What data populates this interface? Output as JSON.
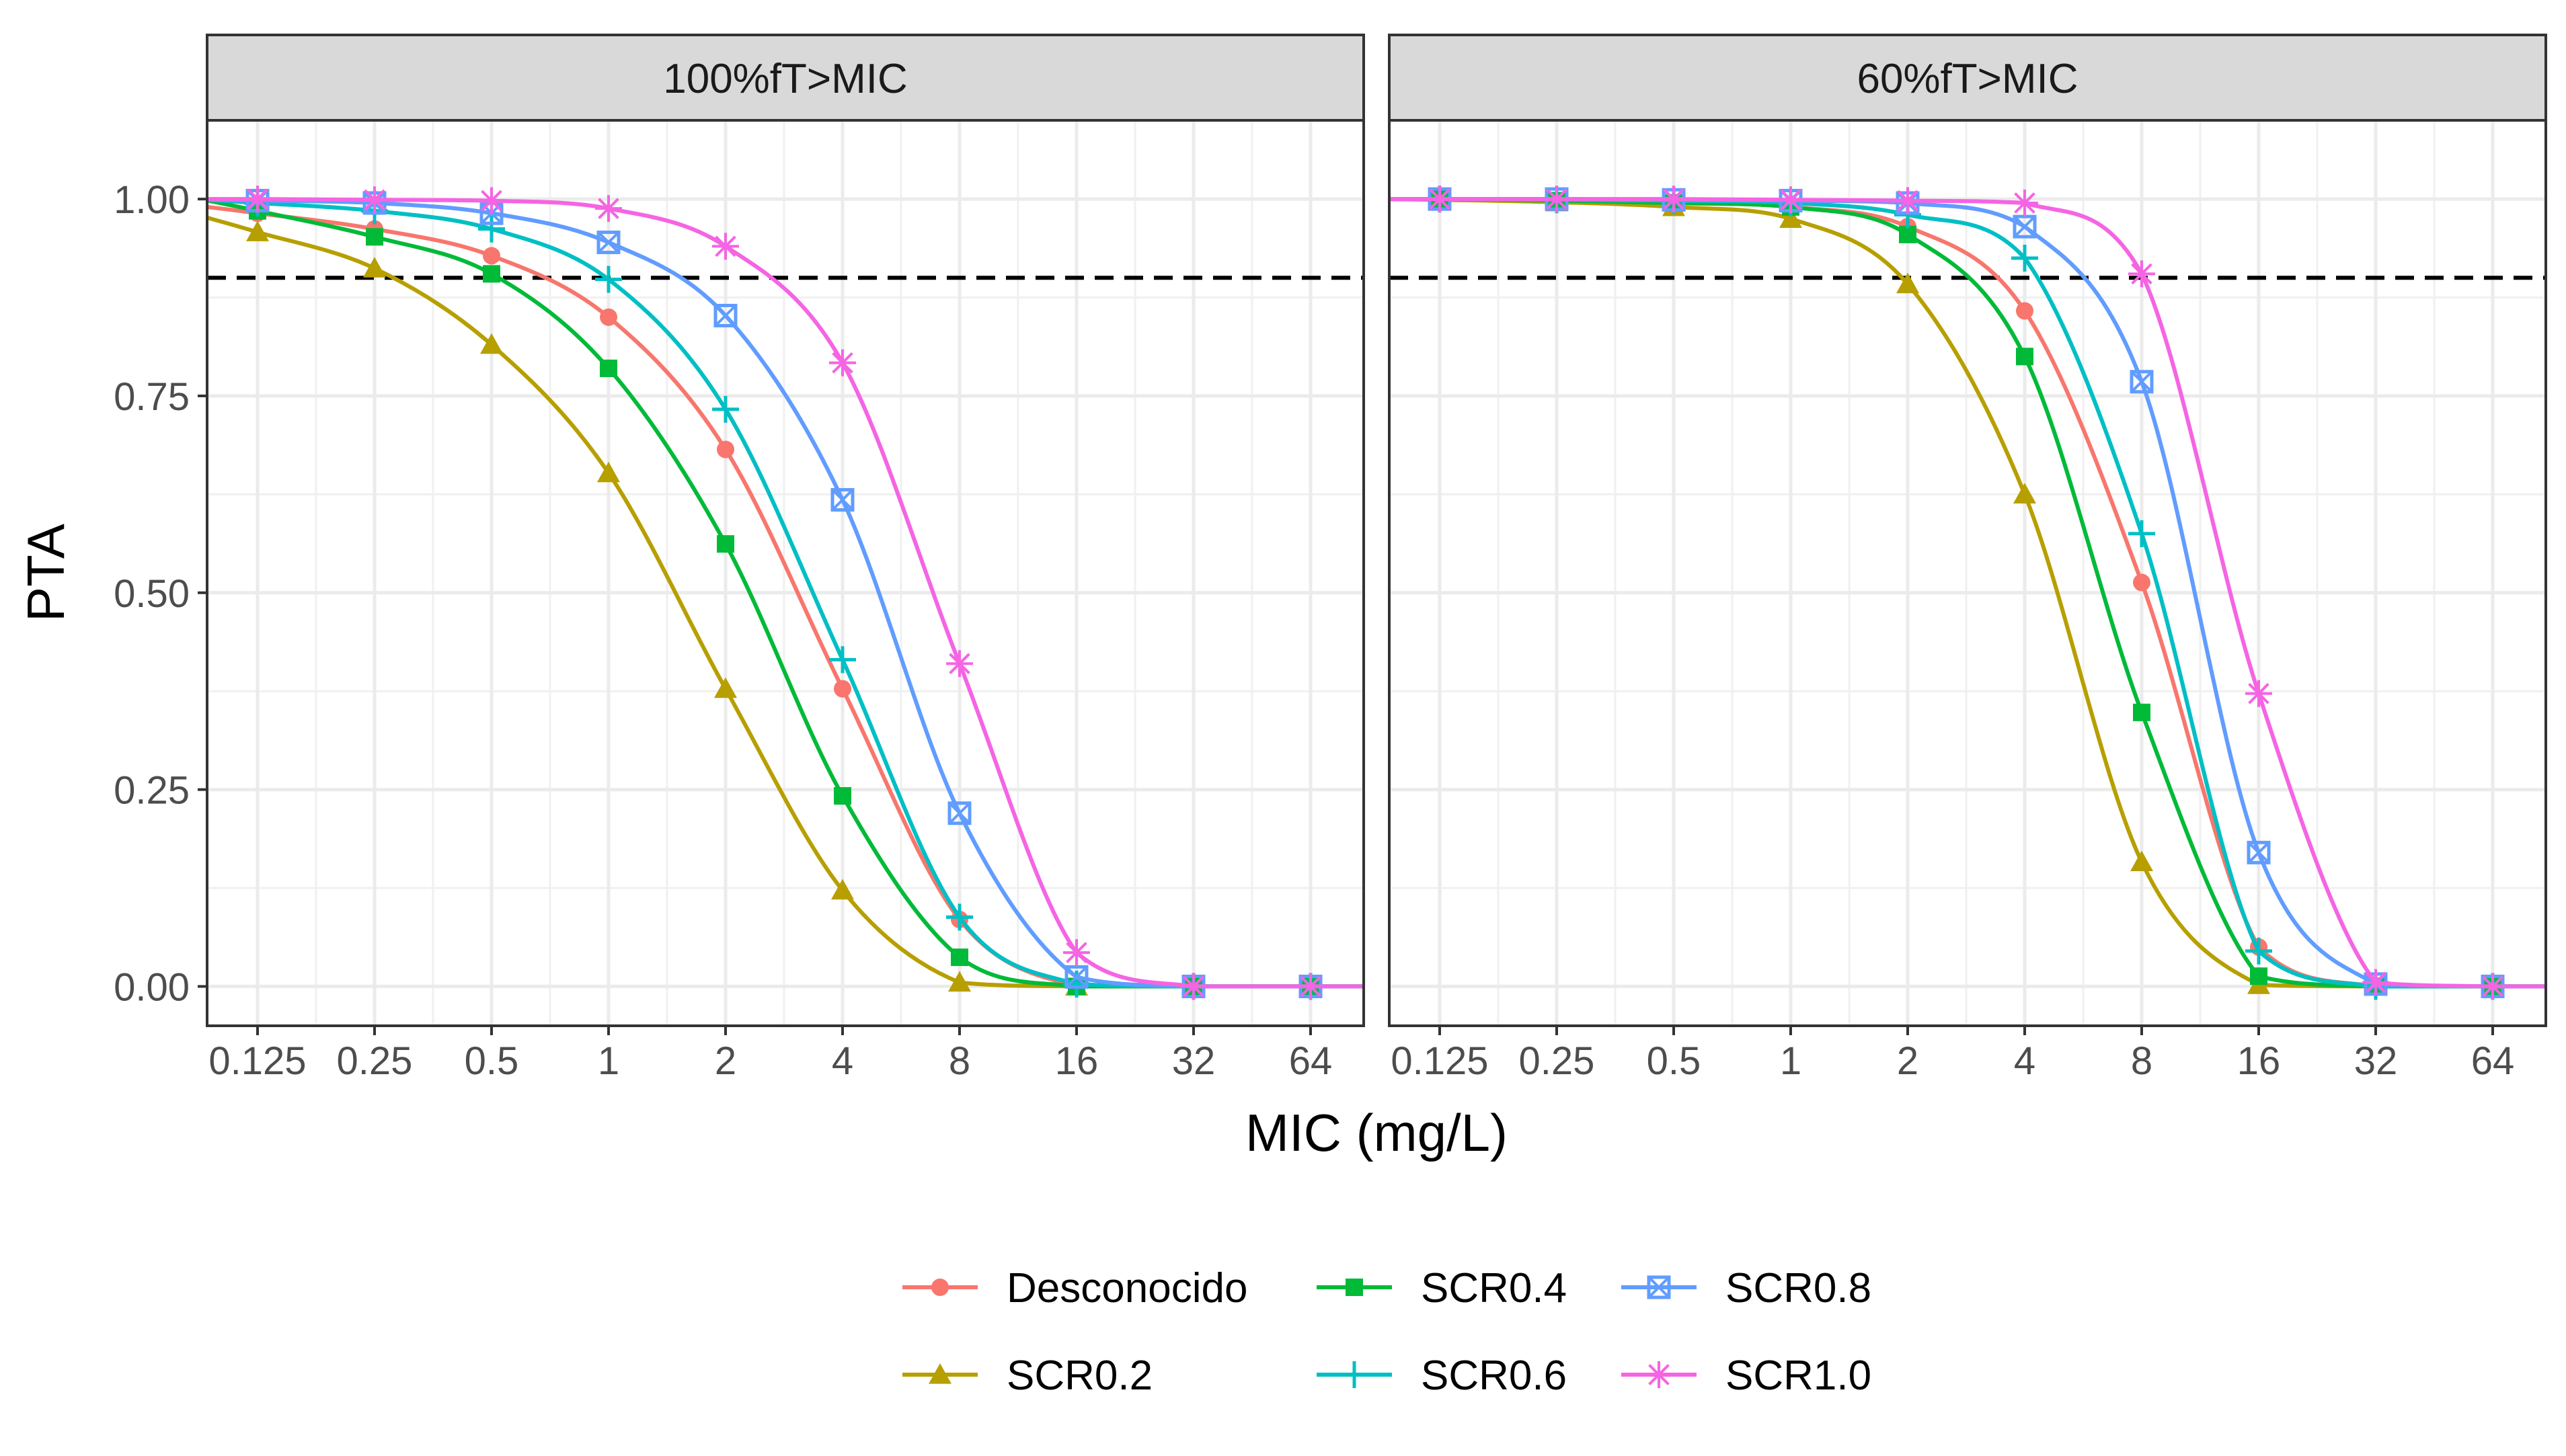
{
  "chart_data": {
    "type": "line",
    "xlabel": "MIC (mg/L)",
    "ylabel": "PTA",
    "x_scale": "log2",
    "x_ticks": [
      0.125,
      0.25,
      0.5,
      1,
      2,
      4,
      8,
      16,
      32,
      64
    ],
    "x_tick_labels": [
      "0.125",
      "0.25",
      "0.5",
      "1",
      "2",
      "4",
      "8",
      "16",
      "32",
      "64"
    ],
    "y_ticks": [
      0,
      0.25,
      0.5,
      0.75,
      1
    ],
    "y_tick_labels": [
      "0.00",
      "0.25",
      "0.50",
      "0.75",
      "1.00"
    ],
    "ylim": [
      -0.05,
      1.1
    ],
    "reference_line": 0.9,
    "grid": true,
    "legend_position": "bottom",
    "legend": [
      {
        "name": "Desconocido",
        "color": "#F8766D",
        "shape": "circle"
      },
      {
        "name": "SCR0.2",
        "color": "#B79F00",
        "shape": "triangle"
      },
      {
        "name": "SCR0.4",
        "color": "#00BA38",
        "shape": "square"
      },
      {
        "name": "SCR0.6",
        "color": "#00BFC4",
        "shape": "plus"
      },
      {
        "name": "SCR0.8",
        "color": "#619CFF",
        "shape": "square-x"
      },
      {
        "name": "SCR1.0",
        "color": "#F564E3",
        "shape": "asterisk"
      }
    ],
    "panels": [
      {
        "title": "100%fT>MIC",
        "series": [
          {
            "name": "Desconocido",
            "values": [
              0.982,
              0.962,
              0.928,
              0.85,
              0.682,
              0.378,
              0.085,
              0.0,
              0.0,
              0.0
            ]
          },
          {
            "name": "SCR0.2",
            "values": [
              0.958,
              0.912,
              0.815,
              0.652,
              0.378,
              0.122,
              0.005,
              0.0,
              0.0,
              0.0
            ]
          },
          {
            "name": "SCR0.4",
            "values": [
              0.985,
              0.952,
              0.905,
              0.785,
              0.562,
              0.242,
              0.037,
              0.0,
              0.0,
              0.0
            ]
          },
          {
            "name": "SCR0.6",
            "values": [
              0.995,
              0.985,
              0.962,
              0.898,
              0.733,
              0.415,
              0.088,
              0.003,
              0.0,
              0.0
            ]
          },
          {
            "name": "SCR0.8",
            "values": [
              0.998,
              0.995,
              0.982,
              0.945,
              0.852,
              0.618,
              0.22,
              0.012,
              0.0,
              0.0
            ]
          },
          {
            "name": "SCR1.0",
            "values": [
              1.0,
              0.999,
              0.998,
              0.988,
              0.94,
              0.792,
              0.41,
              0.043,
              0.0,
              0.0
            ]
          }
        ]
      },
      {
        "title": "60%fT>MIC",
        "series": [
          {
            "name": "Desconocido",
            "values": [
              1.0,
              0.998,
              0.995,
              0.99,
              0.965,
              0.858,
              0.513,
              0.05,
              0.0,
              0.0
            ]
          },
          {
            "name": "SCR0.2",
            "values": [
              0.999,
              0.996,
              0.99,
              0.975,
              0.892,
              0.625,
              0.158,
              0.002,
              0.0,
              0.0
            ]
          },
          {
            "name": "SCR0.4",
            "values": [
              1.0,
              0.998,
              0.995,
              0.99,
              0.955,
              0.8,
              0.348,
              0.013,
              0.0,
              0.0
            ]
          },
          {
            "name": "SCR0.6",
            "values": [
              1.0,
              0.999,
              0.998,
              0.995,
              0.98,
              0.925,
              0.575,
              0.045,
              0.0,
              0.0
            ]
          },
          {
            "name": "SCR0.8",
            "values": [
              1.0,
              1.0,
              0.999,
              0.998,
              0.995,
              0.965,
              0.768,
              0.17,
              0.003,
              0.0
            ]
          },
          {
            "name": "SCR1.0",
            "values": [
              1.0,
              1.0,
              1.0,
              0.999,
              0.998,
              0.995,
              0.905,
              0.372,
              0.005,
              0.0
            ]
          }
        ]
      }
    ]
  }
}
